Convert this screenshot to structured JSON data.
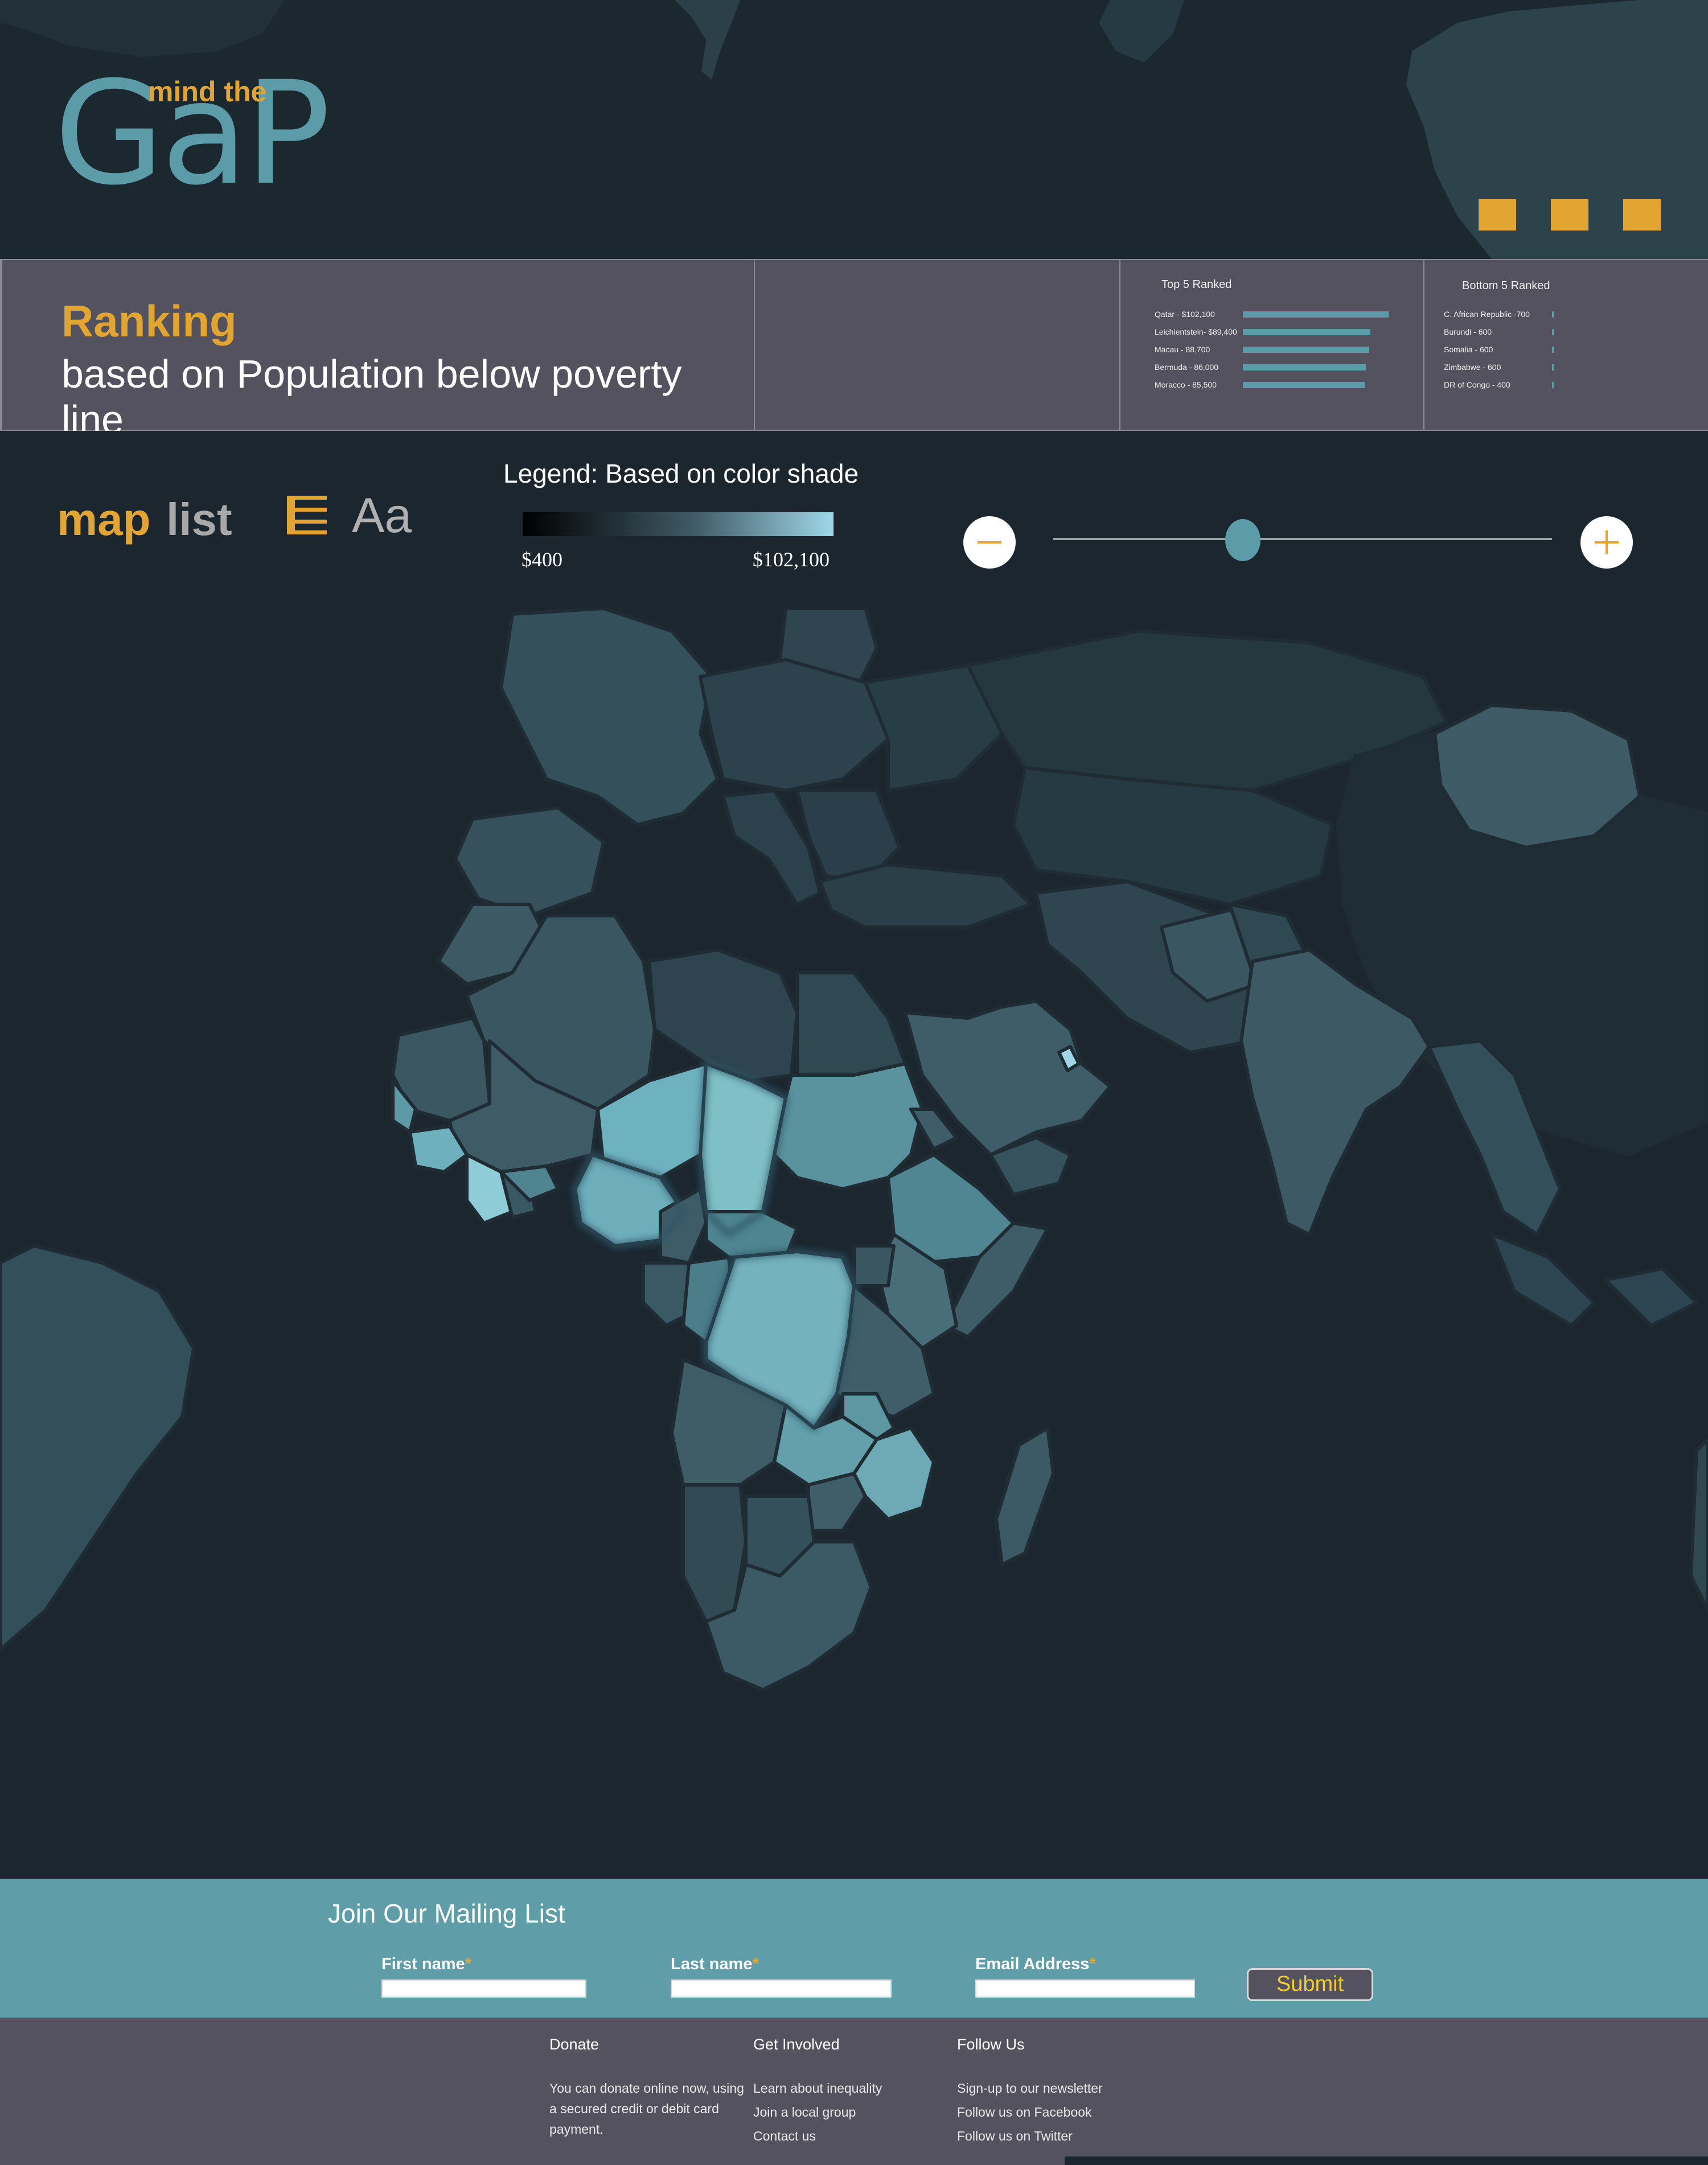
{
  "logo": {
    "small": "mind the",
    "big": "GaP"
  },
  "window_buttons": [
    "button-1",
    "button-2",
    "button-3"
  ],
  "ranking": {
    "title": "Ranking",
    "subtitle": "based on Population below poverty line",
    "top": {
      "heading": "Top 5 Ranked",
      "rows": [
        {
          "label": "Qatar - $102,100",
          "value": 102100
        },
        {
          "label": "Leichientstein- $89,400",
          "value": 89400
        },
        {
          "label": "Macau - 88,700",
          "value": 88700
        },
        {
          "label": "Bermuda - 86,000",
          "value": 86000
        },
        {
          "label": "Moracco - 85,500",
          "value": 85500
        }
      ]
    },
    "bottom": {
      "heading": "Bottom 5 Ranked",
      "rows": [
        {
          "label": "C. African Republic -700",
          "value": 700
        },
        {
          "label": "Burundi - 600",
          "value": 600
        },
        {
          "label": "Somalia - 600",
          "value": 600
        },
        {
          "label": "Zimbabwe - 600",
          "value": 600
        },
        {
          "label": "DR of Congo - 400",
          "value": 400
        }
      ]
    }
  },
  "controls": {
    "view_map": "map",
    "view_list": "list",
    "font_toggle": "Aa",
    "list_icon": "list-icon",
    "legend_title": "Legend: Based on color shade",
    "legend_min": "$400",
    "legend_max": "$102,100",
    "zoom_level": 0.38,
    "zoom_out_icon": "minus-icon",
    "zoom_in_icon": "plus-icon"
  },
  "colors": {
    "accent": "#e3a531",
    "teal": "#5c9ca8",
    "panel": "#53525e",
    "background": "#1b262f"
  },
  "mailing": {
    "title": "Join Our Mailing List",
    "first_name": "First name",
    "last_name": "Last name",
    "email": "Email Address",
    "required_mark": "*",
    "submit": "Submit"
  },
  "footer": {
    "donate": {
      "heading": "Donate",
      "line1": "You can donate online now, using",
      "line2": "a secured credit or debit card",
      "line3": "payment."
    },
    "involved": {
      "heading": "Get Involved",
      "items": [
        "Learn about inequality",
        "Join a local group",
        "Contact us"
      ]
    },
    "follow": {
      "heading": "Follow Us",
      "items": [
        "Sign-up to our newsletter",
        "Follow us on Facebook",
        "Follow us on Twitter"
      ]
    }
  }
}
